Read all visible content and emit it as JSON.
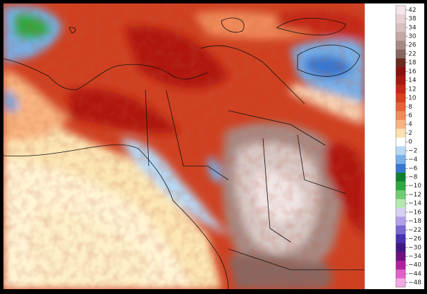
{
  "colorbar": {
    "bins": [
      {
        "label": "42",
        "color": "#f4e4ec"
      },
      {
        "label": "38",
        "color": "#e8d0d4"
      },
      {
        "label": "34",
        "color": "#d8c0c0"
      },
      {
        "label": "30",
        "color": "#c4a8a4"
      },
      {
        "label": "26",
        "color": "#a88a84"
      },
      {
        "label": "22",
        "color": "#8a6660"
      },
      {
        "label": "18",
        "color": "#6a2a20"
      },
      {
        "label": "16",
        "color": "#8a1010"
      },
      {
        "label": "14",
        "color": "#a81810"
      },
      {
        "label": "12",
        "color": "#c42818"
      },
      {
        "label": "10",
        "color": "#d84020"
      },
      {
        "label": "8",
        "color": "#e86038"
      },
      {
        "label": "6",
        "color": "#f08a58"
      },
      {
        "label": "4",
        "color": "#f8b480"
      },
      {
        "label": "2",
        "color": "#fce0b0"
      },
      {
        "label": "0",
        "color": "#ffffff"
      },
      {
        "label": "−2",
        "color": "#b8d8f4"
      },
      {
        "label": "−4",
        "color": "#78b0e8"
      },
      {
        "label": "−6",
        "color": "#3878d0"
      },
      {
        "label": "−8",
        "color": "#108030"
      },
      {
        "label": "−10",
        "color": "#30a840"
      },
      {
        "label": "−12",
        "color": "#70cc70"
      },
      {
        "label": "−14",
        "color": "#b4e8b0"
      },
      {
        "label": "−16",
        "color": "#d8d0f4"
      },
      {
        "label": "−18",
        "color": "#b0a0e8"
      },
      {
        "label": "−22",
        "color": "#7868d0"
      },
      {
        "label": "−26",
        "color": "#4830b0"
      },
      {
        "label": "−30",
        "color": "#401880"
      },
      {
        "label": "−34",
        "color": "#701080"
      },
      {
        "label": "−40",
        "color": "#b020a0"
      },
      {
        "label": "−44",
        "color": "#e060c8"
      },
      {
        "label": "−48",
        "color": "#f4a8e4"
      }
    ]
  }
}
